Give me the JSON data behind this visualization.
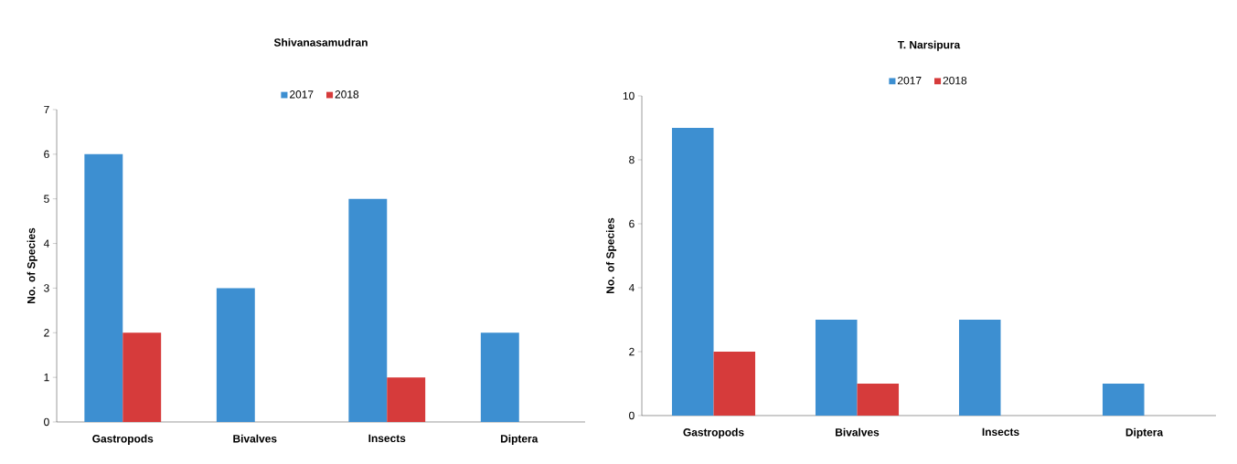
{
  "chart_data": [
    {
      "type": "bar",
      "title": "Shivanasamudran",
      "ylabel": "No. of Species",
      "categories": [
        "Gastropods",
        "Bivalves",
        "Insects",
        "Diptera"
      ],
      "series": [
        {
          "name": "2017",
          "color": "#3d8fd1",
          "values": [
            6,
            3,
            5,
            2
          ]
        },
        {
          "name": "2018",
          "color": "#d63b3b",
          "values": [
            2,
            null,
            1,
            null
          ]
        }
      ],
      "ylim": [
        0,
        7
      ],
      "yticks": [
        0,
        1,
        2,
        3,
        4,
        5,
        6,
        7
      ],
      "legend": "top",
      "grid": false
    },
    {
      "type": "bar",
      "title": "T. Narsipura",
      "ylabel": "No. of Species",
      "categories": [
        "Gastropods",
        "Bivalves",
        "Insects",
        "Diptera"
      ],
      "series": [
        {
          "name": "2017",
          "color": "#3d8fd1",
          "values": [
            9,
            3,
            3,
            1
          ]
        },
        {
          "name": "2018",
          "color": "#d63b3b",
          "values": [
            2,
            1,
            null,
            null
          ]
        }
      ],
      "ylim": [
        0,
        10
      ],
      "yticks": [
        0,
        2,
        4,
        6,
        8,
        10
      ],
      "legend": "top",
      "grid": false
    }
  ]
}
